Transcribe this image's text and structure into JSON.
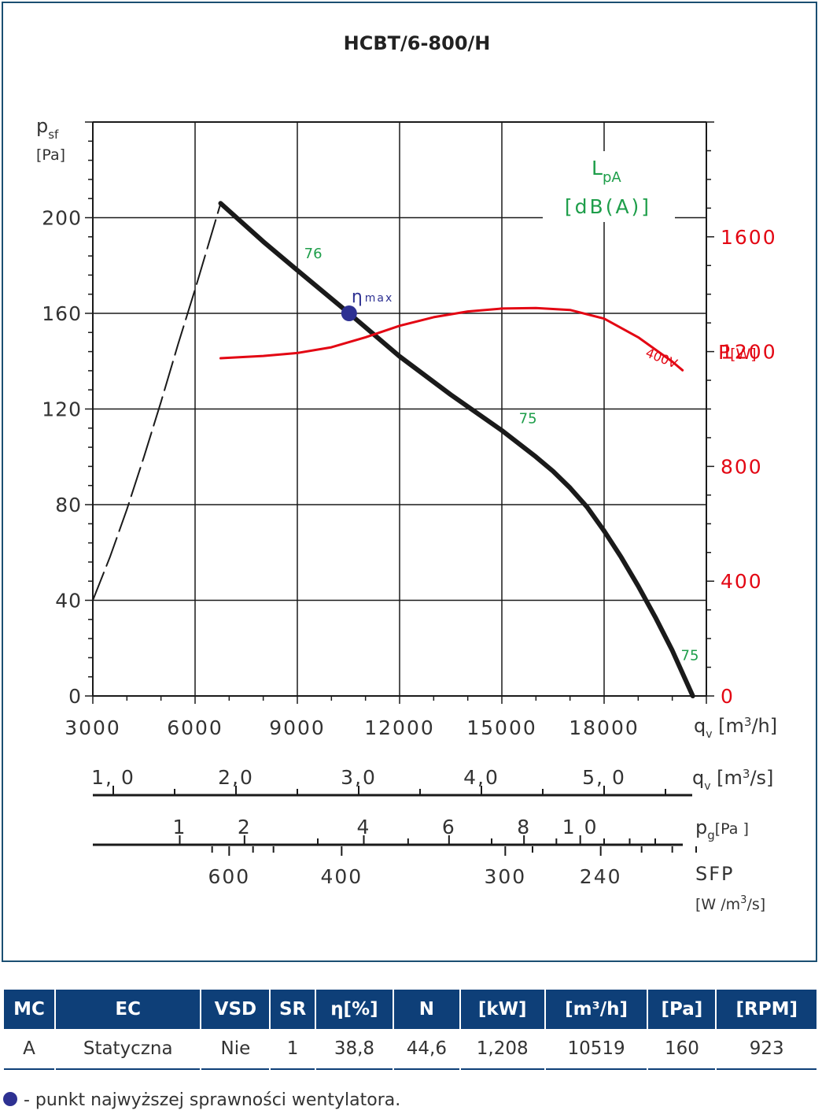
{
  "chart_data": {
    "type": "line",
    "title": "HCBT/6-800/H",
    "y_label": {
      "main": "p",
      "sub": "sf",
      "unit": "[Pa]"
    },
    "ylim": [
      0,
      240
    ],
    "y_ticks": [
      "0",
      "40",
      "80",
      "120",
      "160",
      "200"
    ],
    "y_tick_values": [
      0,
      40,
      80,
      120,
      160,
      200
    ],
    "xlim": [
      3000,
      21000
    ],
    "x_ticks": [
      "3000",
      "6000",
      "9000",
      "12000",
      "15000",
      "18000"
    ],
    "x_tick_values": [
      3000,
      6000,
      9000,
      12000,
      15000,
      18000
    ],
    "x_label": {
      "main": "q",
      "sub": "v",
      "unit": "[m",
      "sup": "3",
      "unit_end": "/h]"
    },
    "power_axis": {
      "label_main": "P",
      "label_unit": "[W]",
      "ylim": [
        0,
        2000
      ],
      "ticks": [
        "0",
        "400",
        "800",
        "1200",
        "1600"
      ],
      "tick_values": [
        0,
        400,
        800,
        1200,
        1600
      ],
      "color": "#e30613"
    },
    "noise_label": {
      "main": "L",
      "sub": "pA",
      "unit": "[dB(A)]",
      "color": "#1e9e4a"
    },
    "series": [
      {
        "name": "",
        "kind": "pressure",
        "x": [
          6750,
          8000,
          9000,
          10519,
          12000,
          13500,
          15000,
          16000,
          16500,
          17000,
          17500,
          18000,
          18500,
          19000,
          19500,
          20000,
          20600
        ],
        "y": [
          206,
          190,
          178,
          160,
          142,
          126,
          111,
          100,
          94,
          87,
          79,
          69,
          58,
          46,
          33,
          19,
          0
        ]
      },
      {
        "name": "",
        "kind": "system-dashed",
        "x": [
          3000,
          3500,
          4000,
          4500,
          5000,
          5500,
          6000,
          6500,
          6750
        ],
        "y": [
          40,
          58,
          78,
          100,
          123,
          147,
          170,
          194,
          206
        ]
      },
      {
        "name": "400V",
        "kind": "power",
        "x": [
          6750,
          8000,
          9000,
          10000,
          11000,
          12000,
          13000,
          14000,
          15000,
          16000,
          17000,
          18000,
          19000,
          20000,
          20300
        ],
        "y": [
          1177,
          1185,
          1195,
          1215,
          1250,
          1290,
          1320,
          1340,
          1350,
          1352,
          1345,
          1315,
          1250,
          1165,
          1135
        ]
      }
    ],
    "noise_points": [
      {
        "label": "76",
        "x": 9200,
        "y": 183
      },
      {
        "label": "75",
        "x": 15500,
        "y": 114
      },
      {
        "label": "75",
        "x": 20250,
        "y": 15
      }
    ],
    "eta_point": {
      "label_main": "η",
      "label_sub": "max",
      "x": 10519,
      "y": 160
    },
    "extra_axes": [
      {
        "name": "qv-m3s",
        "label_main": "q",
        "label_sub": "v",
        "label_unit": "[m",
        "label_sup": "3",
        "label_unit_end": "/s]",
        "ticks": [
          {
            "label": "1, 0",
            "value": 1.0,
            "show": true
          },
          {
            "label": "",
            "value": 1.5,
            "show": false
          },
          {
            "label": "2,0",
            "value": 2.0,
            "show": true
          },
          {
            "label": "",
            "value": 2.5,
            "show": false
          },
          {
            "label": "3,0",
            "value": 3.0,
            "show": true
          },
          {
            "label": "",
            "value": 3.5,
            "show": false
          },
          {
            "label": "4,0",
            "value": 4.0,
            "show": true
          },
          {
            "label": "",
            "value": 4.5,
            "show": false
          },
          {
            "label": "5, 0",
            "value": 5.0,
            "show": true
          },
          {
            "label": "",
            "value": 5.5,
            "show": false
          }
        ]
      },
      {
        "name": "pg",
        "label_main": "p",
        "label_sub": "g",
        "label_unit": "[Pa ]",
        "ticks": [
          {
            "label": "1",
            "value": 1,
            "show": true
          },
          {
            "label": "2",
            "value": 2,
            "show": true
          },
          {
            "label": "",
            "value": 3,
            "show": false
          },
          {
            "label": "4",
            "value": 4,
            "show": true
          },
          {
            "label": "",
            "value": 5,
            "show": false
          },
          {
            "label": "6",
            "value": 6,
            "show": true
          },
          {
            "label": "",
            "value": 7,
            "show": false
          },
          {
            "label": "8",
            "value": 8,
            "show": true
          },
          {
            "label": "",
            "value": 9,
            "show": false
          },
          {
            "label": "1 0",
            "value": 10,
            "show": true
          },
          {
            "label": "",
            "value": 11,
            "show": false
          },
          {
            "label": "",
            "value": 12,
            "show": false
          },
          {
            "label": "",
            "value": 13,
            "show": false
          }
        ]
      },
      {
        "name": "sfp",
        "label_main": "SFP",
        "label_unit": "[W /m",
        "label_sup": "3",
        "label_unit_end": "/s]",
        "ticks": [
          {
            "label": "",
            "value": 620,
            "show": false
          },
          {
            "label": "600",
            "value": 600,
            "show": true
          },
          {
            "label": "",
            "value": 550,
            "show": false
          },
          {
            "label": "",
            "value": 500,
            "show": false
          },
          {
            "label": "400",
            "value": 400,
            "show": true
          },
          {
            "label": "300",
            "value": 300,
            "show": true
          },
          {
            "label": "",
            "value": 280,
            "show": false
          },
          {
            "label": "240",
            "value": 240,
            "show": true
          },
          {
            "label": "",
            "value": 230,
            "show": false
          },
          {
            "label": "",
            "value": 220,
            "show": false
          },
          {
            "label": "",
            "value": 210,
            "show": false
          }
        ]
      }
    ],
    "grid": true,
    "colors": {
      "pressure": "#1a1a1a",
      "power": "#e30613",
      "noise": "#1e9e4a",
      "eta": "#2e3192"
    }
  },
  "table": {
    "headers": [
      "MC",
      "EC",
      "VSD",
      "SR",
      "η[%]",
      "N",
      "[kW]",
      "[m³/h]",
      "[Pa]",
      "[RPM]"
    ],
    "values": [
      "A",
      "Statyczna",
      "Nie",
      "1",
      "38,8",
      "44,6",
      "1,208",
      "10519",
      "160",
      "923"
    ]
  },
  "legend_note": "- punkt najwyższej sprawności wentylatora."
}
